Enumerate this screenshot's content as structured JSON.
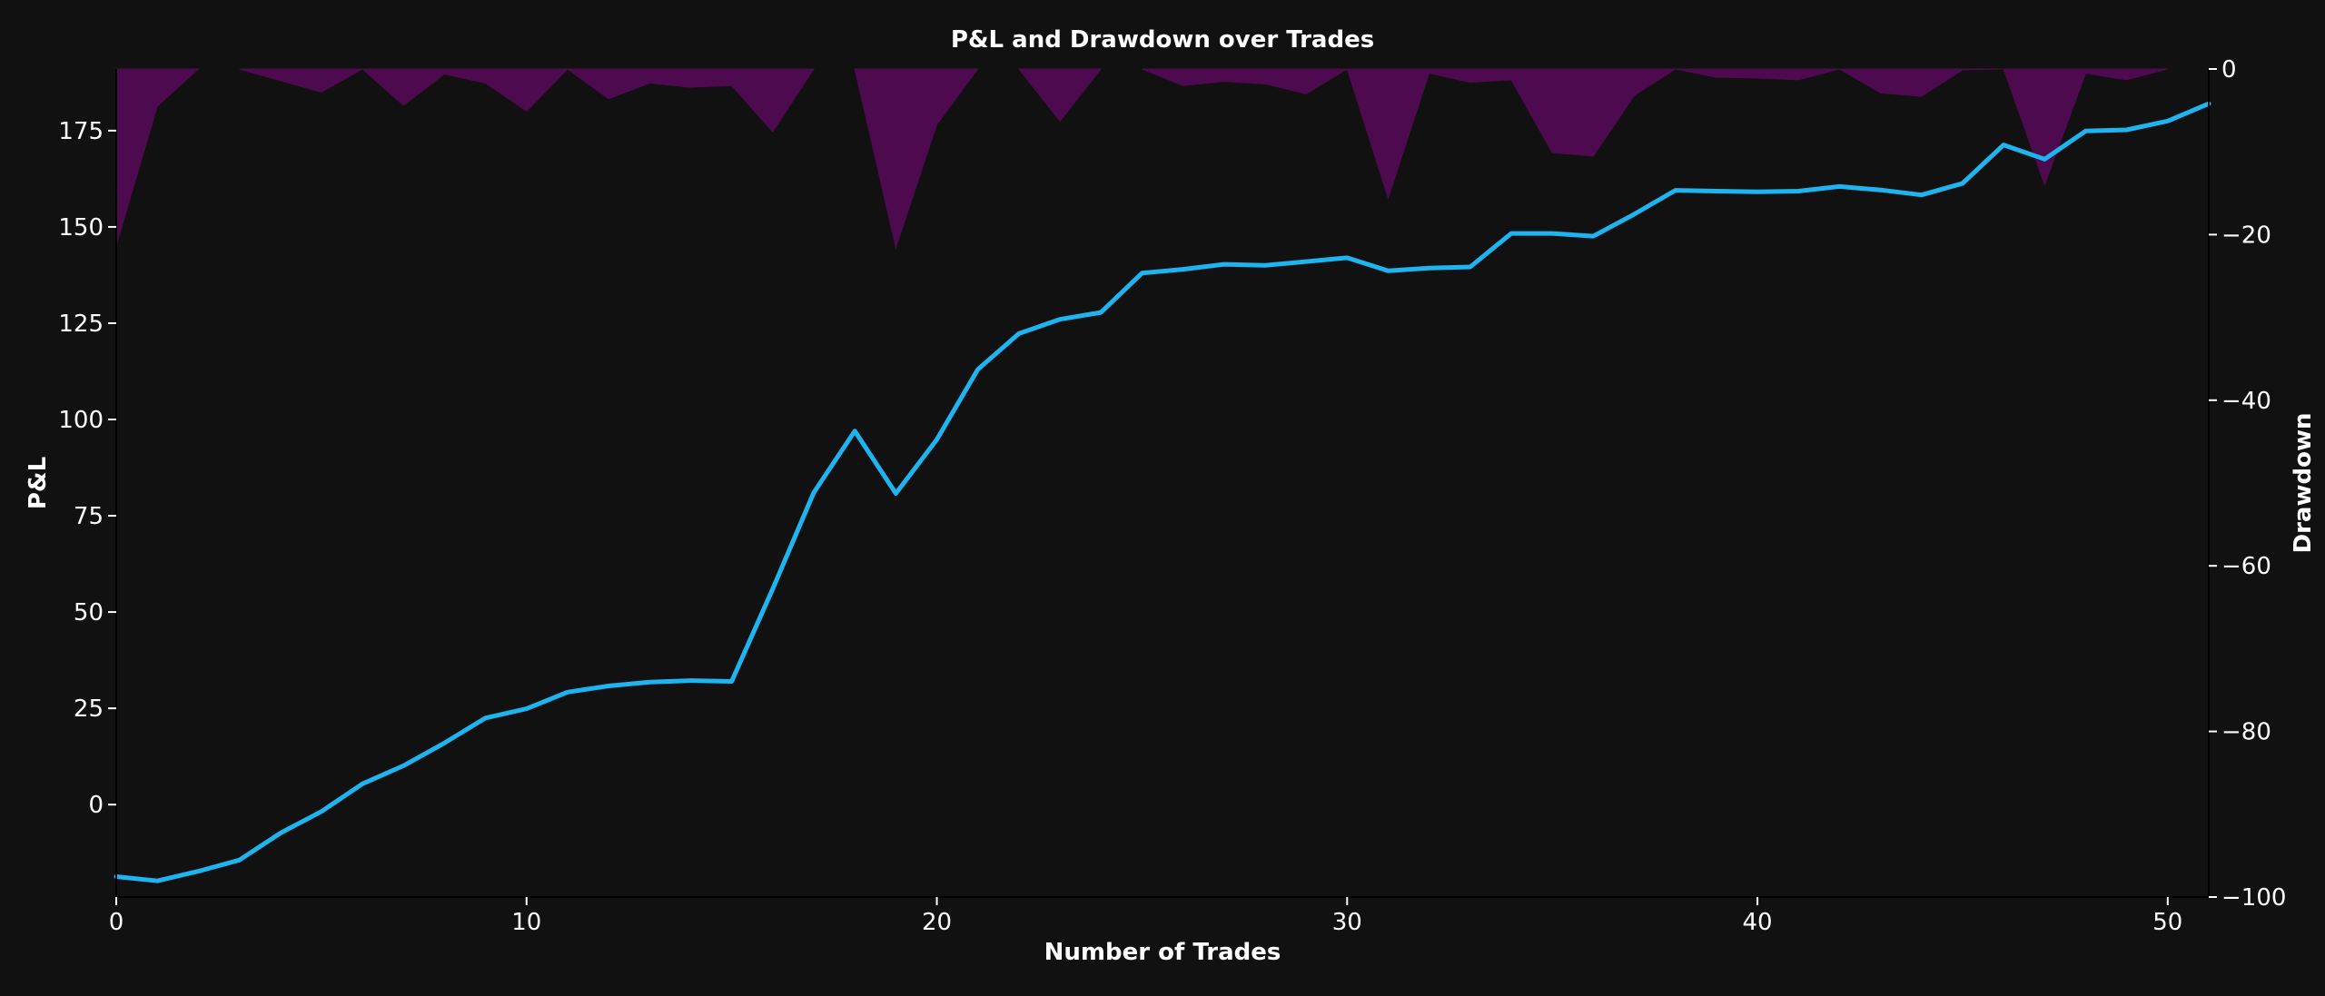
{
  "chart_data": {
    "type": "line",
    "title": "P&L and Drawdown over Trades",
    "xlabel": "Number of Trades",
    "ylabel_left": "P&L",
    "ylabel_right": "Drawdown",
    "xlim": [
      0,
      51
    ],
    "ylim_left": [
      -24,
      191
    ],
    "ylim_right": [
      -100,
      0
    ],
    "x_ticks": [
      0,
      10,
      20,
      30,
      40,
      50
    ],
    "y_left_ticks": [
      0,
      25,
      50,
      75,
      100,
      125,
      150,
      175
    ],
    "y_right_ticks": [
      0,
      -20,
      -40,
      -60,
      -80,
      -100
    ],
    "grid": false,
    "x": [
      0,
      1,
      2,
      3,
      4,
      5,
      6,
      7,
      8,
      9,
      10,
      11,
      12,
      13,
      14,
      15,
      16,
      17,
      18,
      19,
      20,
      21,
      22,
      23,
      24,
      25,
      26,
      27,
      28,
      29,
      30,
      31,
      32,
      33,
      34,
      35,
      36,
      37,
      38,
      39,
      40,
      41,
      42,
      43,
      44,
      45,
      46,
      47,
      48,
      49,
      50,
      51
    ],
    "series": [
      {
        "name": "P&L",
        "axis": "left",
        "style": "line",
        "color": "#1eb4f0",
        "values": [
          -18.7,
          -19.8,
          -17.3,
          -14.4,
          -7.4,
          -1.8,
          5.4,
          10.1,
          16.0,
          22.5,
          24.9,
          29.2,
          30.8,
          31.8,
          32.2,
          32.0,
          56.0,
          81.0,
          97.0,
          80.8,
          94.8,
          113.0,
          122.3,
          126.0,
          127.8,
          138.0,
          139.0,
          140.3,
          140.0,
          141.0,
          142.0,
          138.6,
          139.3,
          139.6,
          148.3,
          148.3,
          147.6,
          153.3,
          159.5,
          159.3,
          159.1,
          159.3,
          160.5,
          159.6,
          158.3,
          161.3,
          171.3,
          167.6,
          174.9,
          175.2,
          177.5,
          182.0
        ]
      },
      {
        "name": "Drawdown",
        "axis": "right",
        "style": "area",
        "color": "#4e0a4e",
        "values": [
          -21.3,
          -4.5,
          0,
          0,
          -1.4,
          -2.8,
          0,
          -4.4,
          -0.6,
          -1.7,
          -5.1,
          0,
          -3.6,
          -1.7,
          -2.2,
          -2.0,
          -7.6,
          0,
          0,
          -21.6,
          -6.7,
          0,
          0,
          -6.3,
          0,
          0,
          -2.0,
          -1.5,
          -1.8,
          -3.0,
          0,
          -15.6,
          -0.5,
          -1.6,
          -1.3,
          -10.1,
          -10.5,
          -3.2,
          0,
          -1.0,
          -1.1,
          -1.3,
          0,
          -2.9,
          -3.3,
          -0.1,
          0,
          -14.0,
          -0.5,
          -1.3,
          0,
          0
        ]
      }
    ]
  }
}
